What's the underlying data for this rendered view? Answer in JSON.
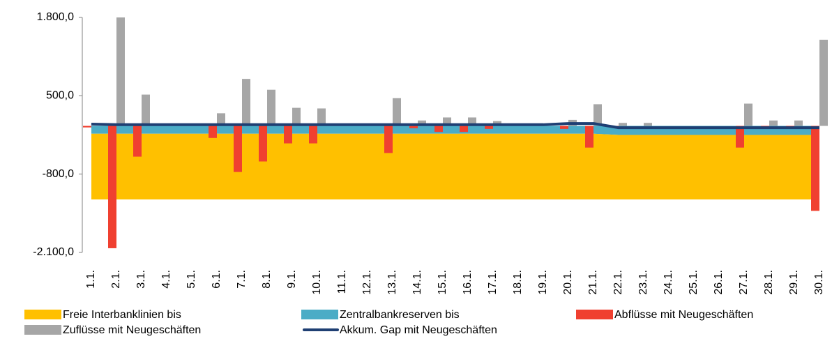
{
  "chart_data": {
    "type": "combo",
    "categories": [
      "1.1.",
      "2.1.",
      "3.1.",
      "4.1.",
      "5.1.",
      "6.1.",
      "7.1.",
      "8.1.",
      "9.1.",
      "10.1.",
      "11.1.",
      "12.1.",
      "13.1.",
      "14.1.",
      "15.1.",
      "16.1.",
      "17.1.",
      "18.1.",
      "19.1.",
      "20.1.",
      "21.1.",
      "22.1.",
      "23.1.",
      "24.1.",
      "25.1.",
      "26.1.",
      "27.1.",
      "28.1.",
      "29.1.",
      "30.1."
    ],
    "ylim": [
      -2100,
      1800
    ],
    "yticks": [
      {
        "value": -2100,
        "label": "-2.100,0"
      },
      {
        "value": -800,
        "label": "-800,0"
      },
      {
        "value": 500,
        "label": "500,0"
      },
      {
        "value": 1800,
        "label": "1.800,0"
      }
    ],
    "series": [
      {
        "name": "Freie Interbanklinien bis",
        "type": "area",
        "color": "#FFC000",
        "values": [
          -1090,
          -1090,
          -1090,
          -1090,
          -1090,
          -1090,
          -1090,
          -1090,
          -1090,
          -1090,
          -1090,
          -1090,
          -1090,
          -1090,
          -1090,
          -1090,
          -1090,
          -1090,
          -1090,
          -1090,
          -1090,
          -1070,
          -1070,
          -1070,
          -1070,
          -1070,
          -1070,
          -1070,
          -1070,
          -1070
        ]
      },
      {
        "name": "Zentralbankreserven bis",
        "type": "area",
        "color": "#4BACC6",
        "values": [
          -130,
          -130,
          -130,
          -130,
          -130,
          -130,
          -130,
          -130,
          -130,
          -130,
          -130,
          -130,
          -130,
          -130,
          -130,
          -130,
          -130,
          -130,
          -130,
          -130,
          -130,
          -150,
          -150,
          -150,
          -150,
          -150,
          -150,
          -150,
          -150,
          -150
        ]
      },
      {
        "name": "Abflüsse mit Neugeschäften",
        "type": "bar",
        "color": "#F04030",
        "values": [
          -25,
          -2030,
          -510,
          0,
          0,
          -200,
          -765,
          -590,
          -290,
          -290,
          0,
          0,
          -450,
          -40,
          -100,
          -100,
          -50,
          0,
          0,
          -50,
          -360,
          -20,
          0,
          0,
          0,
          0,
          -360,
          -30,
          -30,
          -1410
        ]
      },
      {
        "name": "Zuflüsse mit Neugeschäften",
        "type": "bar",
        "color": "#A6A6A6",
        "values": [
          0,
          1800,
          520,
          0,
          0,
          210,
          780,
          600,
          300,
          290,
          0,
          0,
          460,
          90,
          140,
          140,
          80,
          0,
          0,
          100,
          360,
          50,
          50,
          0,
          0,
          0,
          370,
          90,
          90,
          1430
        ]
      },
      {
        "name": "Akkum. Gap mit Neugeschäften",
        "type": "line",
        "color": "#1F3F73",
        "values": [
          30,
          20,
          20,
          20,
          20,
          20,
          20,
          20,
          20,
          20,
          20,
          20,
          20,
          20,
          20,
          20,
          20,
          20,
          20,
          40,
          40,
          -30,
          -30,
          -30,
          -30,
          -30,
          -30,
          -30,
          -30,
          -30
        ]
      }
    ]
  }
}
